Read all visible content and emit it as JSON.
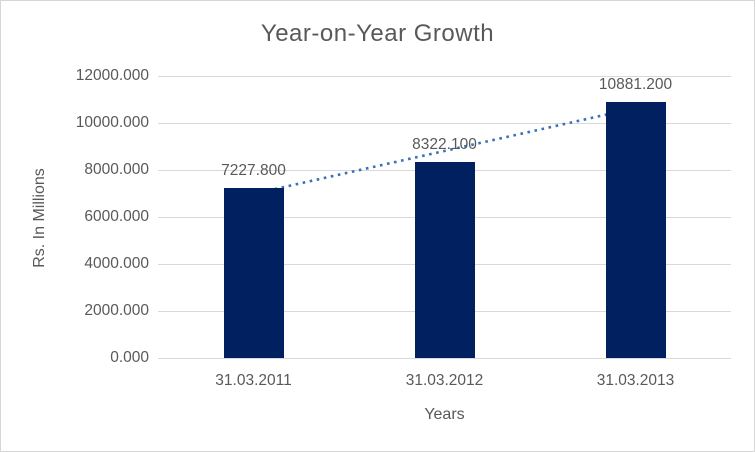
{
  "chart_data": {
    "type": "bar",
    "title": "Year-on-Year Growth",
    "xlabel": "Years",
    "ylabel": "Rs. In Millions",
    "categories": [
      "31.03.2011",
      "31.03.2012",
      "31.03.2013"
    ],
    "values": [
      7227.8,
      8322.1,
      10881.2
    ],
    "data_labels": [
      "7227.800",
      "8322.100",
      "10881.200"
    ],
    "ylim": [
      0,
      12000
    ],
    "ytick_step": 2000,
    "ytick_labels": [
      "0.000",
      "2000.000",
      "4000.000",
      "6000.000",
      "8000.000",
      "10000.000",
      "12000.000"
    ],
    "grid": true,
    "legend": "none",
    "trendline": {
      "type": "linear",
      "style": "dotted",
      "color": "#3a70b8"
    },
    "colors": {
      "bar": "#002060",
      "gridline": "#d9d9d9",
      "text": "#595959",
      "border": "#d7d7d7",
      "background": "#ffffff"
    }
  }
}
